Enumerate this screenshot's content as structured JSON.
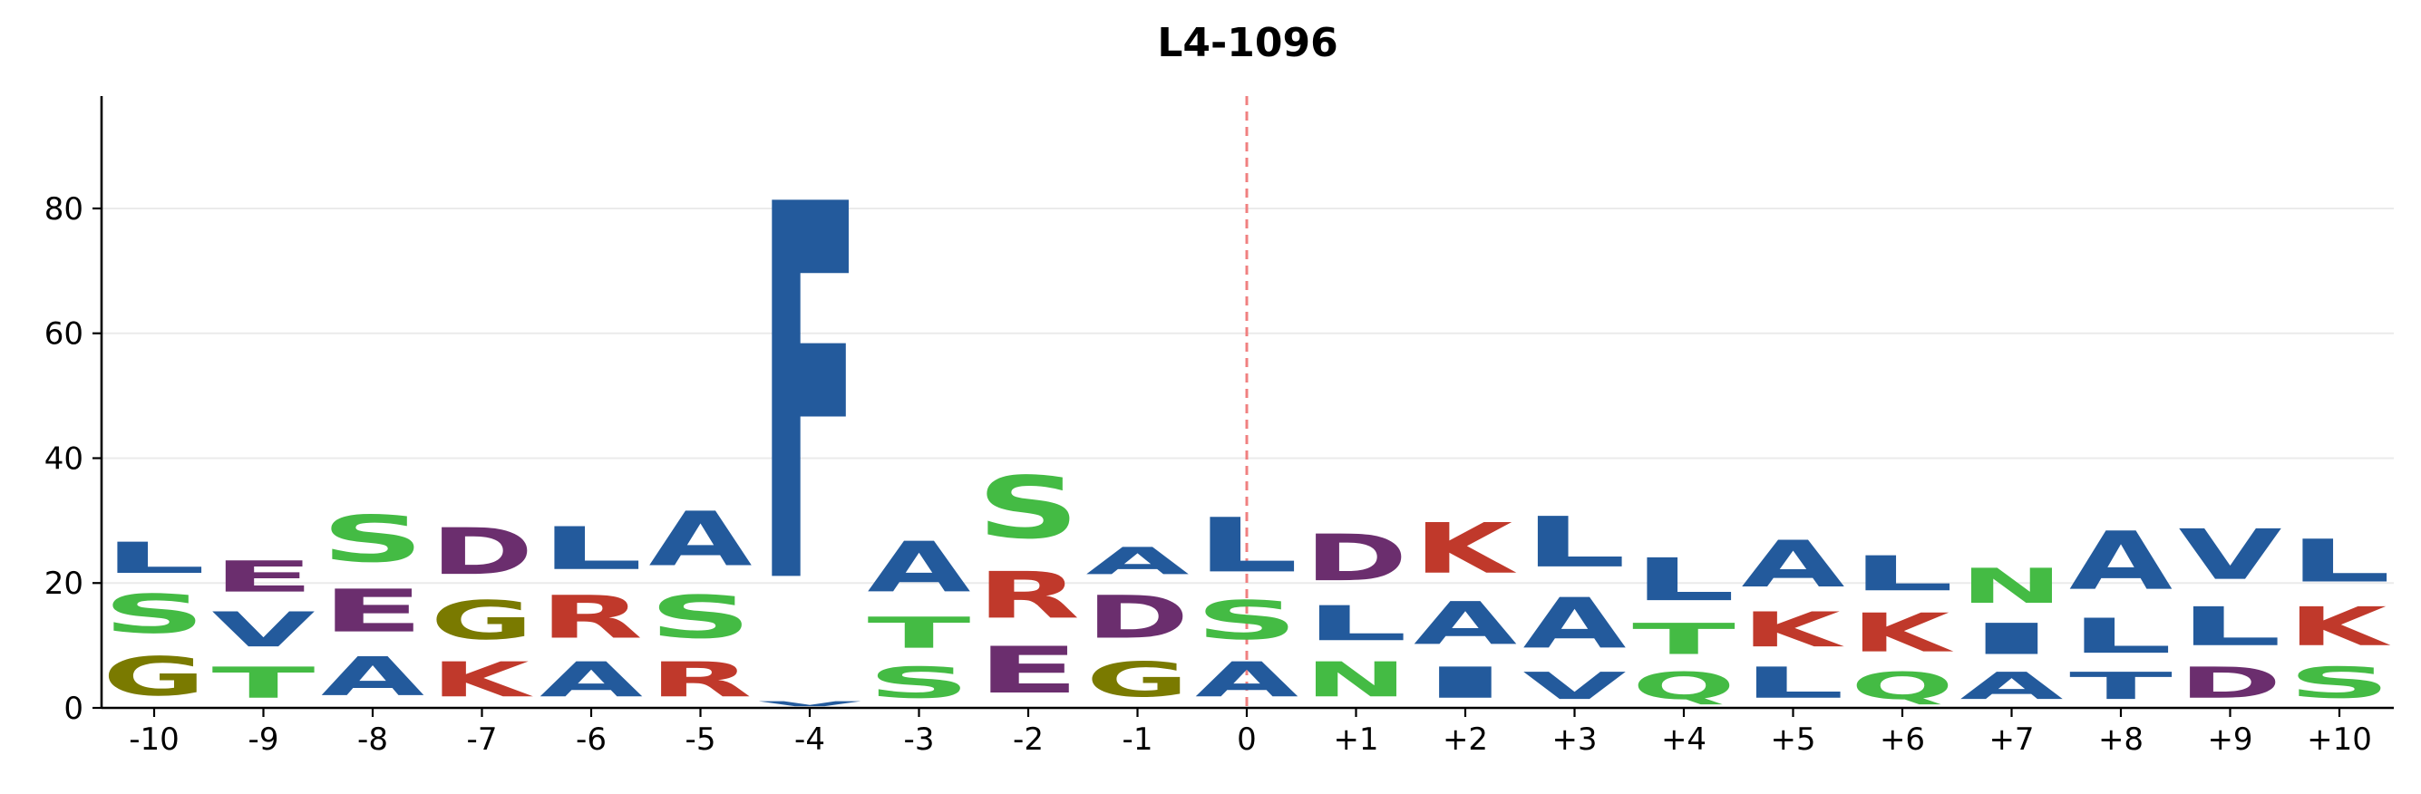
{
  "chart_data": {
    "type": "sequence-logo",
    "title": "L4-1096",
    "xlabel": "",
    "ylabel": "",
    "ylim": [
      0,
      98
    ],
    "yticks": [
      0,
      20,
      40,
      60,
      80
    ],
    "grid": true,
    "reference_line": {
      "position": "0",
      "color": "#f08080",
      "style": "dashed"
    },
    "colors": {
      "blue": "#235a9c",
      "green": "#44bb44",
      "purple": "#6b2e6e",
      "red": "#c0392b",
      "olive": "#7a7a00"
    },
    "positions": [
      {
        "label": "-10",
        "stack": [
          {
            "letter": "G",
            "height": 10,
            "color": "olive"
          },
          {
            "letter": "S",
            "height": 10,
            "color": "green"
          },
          {
            "letter": "L",
            "height": 8,
            "color": "blue"
          }
        ]
      },
      {
        "label": "-9",
        "stack": [
          {
            "letter": "T",
            "height": 8,
            "color": "green"
          },
          {
            "letter": "V",
            "height": 9,
            "color": "blue"
          },
          {
            "letter": "E",
            "height": 8,
            "color": "purple"
          }
        ]
      },
      {
        "label": "-8",
        "stack": [
          {
            "letter": "A",
            "height": 10,
            "color": "blue"
          },
          {
            "letter": "E",
            "height": 11,
            "color": "purple"
          },
          {
            "letter": "S",
            "height": 12,
            "color": "green"
          }
        ]
      },
      {
        "label": "-7",
        "stack": [
          {
            "letter": "K",
            "height": 9,
            "color": "red"
          },
          {
            "letter": "G",
            "height": 10,
            "color": "olive"
          },
          {
            "letter": "D",
            "height": 12,
            "color": "purple"
          }
        ]
      },
      {
        "label": "-6",
        "stack": [
          {
            "letter": "A",
            "height": 9,
            "color": "blue"
          },
          {
            "letter": "R",
            "height": 11,
            "color": "red"
          },
          {
            "letter": "L",
            "height": 11,
            "color": "blue"
          }
        ]
      },
      {
        "label": "-5",
        "stack": [
          {
            "letter": "R",
            "height": 9,
            "color": "red"
          },
          {
            "letter": "S",
            "height": 11,
            "color": "green"
          },
          {
            "letter": "A",
            "height": 14,
            "color": "blue"
          }
        ]
      },
      {
        "label": "-4",
        "stack": [
          {
            "letter": "V",
            "height": 1.3,
            "color": "blue"
          },
          {
            "letter": "F",
            "height": 96.7,
            "color": "blue"
          }
        ]
      },
      {
        "label": "-3",
        "stack": [
          {
            "letter": "S",
            "height": 8,
            "color": "green"
          },
          {
            "letter": "T",
            "height": 8,
            "color": "green"
          },
          {
            "letter": "A",
            "height": 13,
            "color": "blue"
          }
        ]
      },
      {
        "label": "-2",
        "stack": [
          {
            "letter": "E",
            "height": 12,
            "color": "purple"
          },
          {
            "letter": "R",
            "height": 12,
            "color": "red"
          },
          {
            "letter": "S",
            "height": 16,
            "color": "green"
          }
        ]
      },
      {
        "label": "-1",
        "stack": [
          {
            "letter": "G",
            "height": 9,
            "color": "olive"
          },
          {
            "letter": "D",
            "height": 11,
            "color": "purple"
          },
          {
            "letter": "A",
            "height": 7,
            "color": "blue"
          }
        ]
      },
      {
        "label": "0",
        "stack": [
          {
            "letter": "A",
            "height": 9,
            "color": "blue"
          },
          {
            "letter": "S",
            "height": 10,
            "color": "green"
          },
          {
            "letter": "L",
            "height": 14,
            "color": "blue"
          }
        ]
      },
      {
        "label": "+1",
        "stack": [
          {
            "letter": "N",
            "height": 9,
            "color": "green"
          },
          {
            "letter": "L",
            "height": 9,
            "color": "blue"
          },
          {
            "letter": "D",
            "height": 12,
            "color": "purple"
          }
        ]
      },
      {
        "label": "+2",
        "stack": [
          {
            "letter": "I",
            "height": 8,
            "color": "blue"
          },
          {
            "letter": "A",
            "height": 11,
            "color": "blue"
          },
          {
            "letter": "K",
            "height": 13,
            "color": "red"
          }
        ]
      },
      {
        "label": "+3",
        "stack": [
          {
            "letter": "V",
            "height": 7,
            "color": "blue"
          },
          {
            "letter": "A",
            "height": 13,
            "color": "blue"
          },
          {
            "letter": "L",
            "height": 13,
            "color": "blue"
          }
        ]
      },
      {
        "label": "+4",
        "stack": [
          {
            "letter": "Q",
            "height": 7,
            "color": "green"
          },
          {
            "letter": "T",
            "height": 8,
            "color": "green"
          },
          {
            "letter": "L",
            "height": 11,
            "color": "blue"
          }
        ]
      },
      {
        "label": "+5",
        "stack": [
          {
            "letter": "L",
            "height": 8,
            "color": "blue"
          },
          {
            "letter": "K",
            "height": 9,
            "color": "red"
          },
          {
            "letter": "A",
            "height": 12,
            "color": "blue"
          }
        ]
      },
      {
        "label": "+6",
        "stack": [
          {
            "letter": "Q",
            "height": 7,
            "color": "green"
          },
          {
            "letter": "K",
            "height": 10,
            "color": "red"
          },
          {
            "letter": "L",
            "height": 9,
            "color": "blue"
          }
        ]
      },
      {
        "label": "+7",
        "stack": [
          {
            "letter": "A",
            "height": 7,
            "color": "blue"
          },
          {
            "letter": "I",
            "height": 8,
            "color": "blue"
          },
          {
            "letter": "N",
            "height": 9,
            "color": "green"
          }
        ]
      },
      {
        "label": "+8",
        "stack": [
          {
            "letter": "T",
            "height": 7,
            "color": "blue"
          },
          {
            "letter": "L",
            "height": 9,
            "color": "blue"
          },
          {
            "letter": "A",
            "height": 15,
            "color": "blue"
          }
        ]
      },
      {
        "label": "+9",
        "stack": [
          {
            "letter": "D",
            "height": 8,
            "color": "purple"
          },
          {
            "letter": "L",
            "height": 10,
            "color": "blue"
          },
          {
            "letter": "V",
            "height": 13,
            "color": "blue"
          }
        ]
      },
      {
        "label": "+10",
        "stack": [
          {
            "letter": "S",
            "height": 8,
            "color": "green"
          },
          {
            "letter": "K",
            "height": 10,
            "color": "red"
          },
          {
            "letter": "L",
            "height": 11,
            "color": "blue"
          }
        ]
      }
    ]
  }
}
